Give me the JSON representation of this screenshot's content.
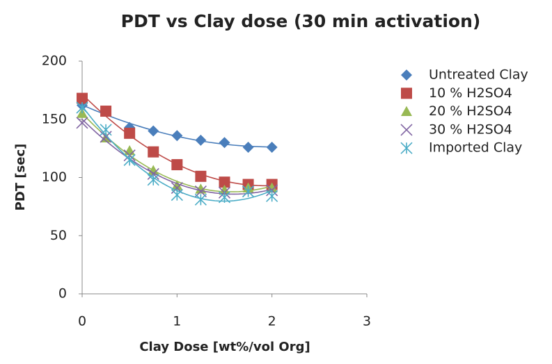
{
  "chart_data": {
    "type": "scatter",
    "title": "PDT vs Clay dose (30 min activation)",
    "x_label": "Clay Dose [wt%/vol Org]",
    "y_label": "PDT [sec]",
    "x": [
      0,
      0.25,
      0.5,
      0.75,
      1,
      1.25,
      1.5,
      1.75,
      2
    ],
    "series": [
      {
        "name": "Untreated Clay",
        "color": "#4a7ebb",
        "marker": "diamond",
        "values": [
          162,
          157,
          143,
          140,
          136,
          132,
          130,
          126,
          126
        ]
      },
      {
        "name": "10 % H2SO4",
        "color": "#be4b48",
        "marker": "square",
        "values": [
          168,
          157,
          138,
          122,
          111,
          101,
          96,
          94,
          94
        ]
      },
      {
        "name": "20 % H2SO4",
        "color": "#98b954",
        "marker": "triangle",
        "values": [
          155,
          134,
          123,
          106,
          93,
          90,
          89,
          91,
          91
        ]
      },
      {
        "name": "30 % H2SO4",
        "color": "#8064a2",
        "marker": "cross",
        "values": [
          147,
          135,
          119,
          103,
          91,
          88,
          87,
          88,
          89
        ]
      },
      {
        "name": "Imported Clay",
        "color": "#4bacc6",
        "marker": "star",
        "values": [
          160,
          141,
          115,
          98,
          85,
          81,
          83,
          88,
          84
        ]
      }
    ],
    "xlim": [
      0,
      3
    ],
    "xticks": [
      0,
      1,
      2,
      3
    ],
    "ylim": [
      0,
      200
    ],
    "yticks": [
      0,
      50,
      100,
      150,
      200
    ],
    "trendline": "polynomial",
    "grid": false,
    "legend": "right"
  }
}
